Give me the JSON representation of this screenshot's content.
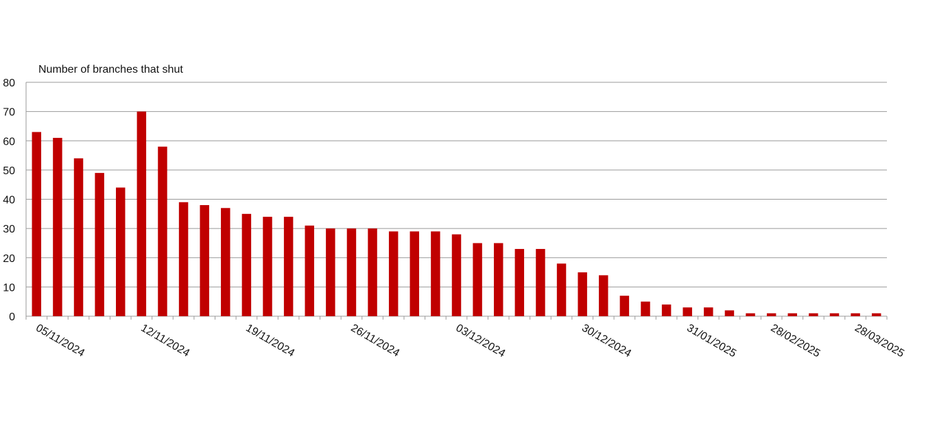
{
  "chart_data": {
    "type": "bar",
    "title": "Number of branches that shut",
    "categories": [
      "05/11/2024",
      null,
      null,
      null,
      null,
      "12/11/2024",
      null,
      null,
      null,
      null,
      "19/11/2024",
      null,
      null,
      null,
      null,
      "26/11/2024",
      null,
      null,
      null,
      null,
      "03/12/2024",
      null,
      null,
      null,
      null,
      null,
      "30/12/2024",
      null,
      null,
      null,
      null,
      "31/01/2025",
      null,
      null,
      null,
      "28/02/2025",
      null,
      null,
      null,
      "28/03/2025",
      null
    ],
    "values": [
      63,
      61,
      54,
      49,
      44,
      70,
      58,
      39,
      38,
      37,
      35,
      34,
      34,
      31,
      30,
      30,
      30,
      29,
      29,
      29,
      28,
      25,
      25,
      23,
      23,
      18,
      15,
      14,
      7,
      5,
      4,
      3,
      3,
      2,
      1,
      1,
      1,
      1,
      1,
      1,
      1
    ],
    "color": "#c00000",
    "ylim": [
      0,
      80
    ],
    "yticks": [
      0,
      10,
      20,
      30,
      40,
      50,
      60,
      70,
      80
    ],
    "grid": true
  }
}
